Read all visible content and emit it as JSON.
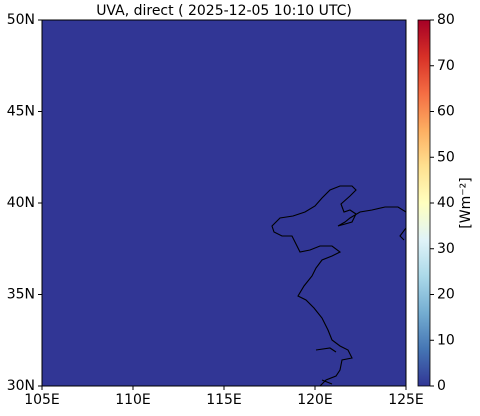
{
  "chart_data": {
    "type": "map",
    "title": "UVA, direct ( 2025-12-05 10:10 UTC)",
    "field_value": 0,
    "xlim": [
      105,
      125
    ],
    "ylim": [
      30,
      50
    ],
    "xticks": [
      {
        "value": 105,
        "label": "105E"
      },
      {
        "value": 110,
        "label": "110E"
      },
      {
        "value": 115,
        "label": "115E"
      },
      {
        "value": 120,
        "label": "120E"
      },
      {
        "value": 125,
        "label": "125E"
      }
    ],
    "yticks": [
      {
        "value": 30,
        "label": "30N"
      },
      {
        "value": 35,
        "label": "35N"
      },
      {
        "value": 40,
        "label": "40N"
      },
      {
        "value": 45,
        "label": "45N"
      },
      {
        "value": 50,
        "label": "50N"
      }
    ],
    "colorbar": {
      "label": "[Wm⁻²]",
      "clim": [
        0,
        80
      ],
      "ticks": [
        0,
        10,
        20,
        30,
        40,
        50,
        60,
        70,
        80
      ],
      "colormap": [
        "#313695",
        "#4575b4",
        "#74add1",
        "#abd9e9",
        "#e0f3f8",
        "#ffffbf",
        "#fee090",
        "#fdae61",
        "#f46d43",
        "#d73027",
        "#a50026"
      ]
    }
  }
}
